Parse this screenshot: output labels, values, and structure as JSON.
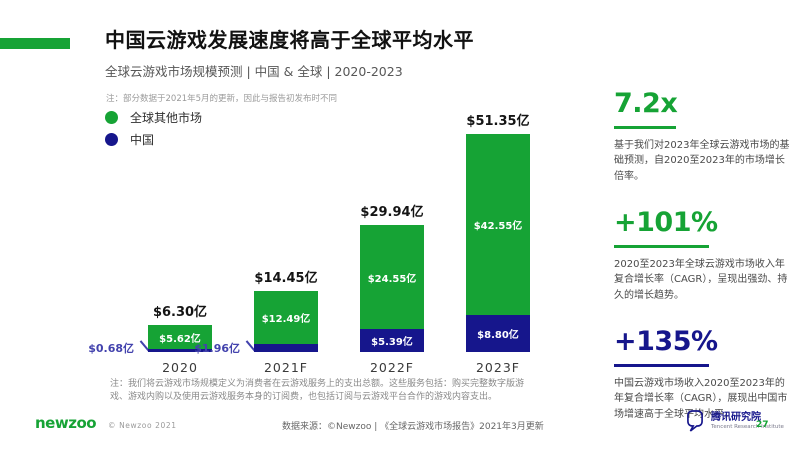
{
  "accent": {
    "green": "#16a335",
    "navy": "#16168c",
    "china_callout_blue": "#4242ad"
  },
  "header": {
    "title": "中国云游戏发展速度将高于全球平均水平",
    "subtitle": "全球云游戏市场规模预测 | 中国 & 全球 | 2020-2023"
  },
  "note_top": "注：部分数据于2021年5月的更新，因此与报告初发布时不同",
  "legend": [
    {
      "label": "全球其他市场",
      "color": "#16a335"
    },
    {
      "label": "中国",
      "color": "#16168c"
    }
  ],
  "chart_data": {
    "type": "bar",
    "stacked": true,
    "unit": "US$ 亿",
    "categories": [
      "2020",
      "2021F",
      "2022F",
      "2023F"
    ],
    "series": [
      {
        "name": "全球其他市场",
        "color": "#16a335",
        "values": [
          5.62,
          12.49,
          24.55,
          42.55
        ],
        "labels": [
          "$5.62亿",
          "$12.49亿",
          "$24.55亿",
          "$42.55亿"
        ]
      },
      {
        "name": "中国",
        "color": "#16168c",
        "values": [
          0.68,
          1.96,
          5.39,
          8.8
        ],
        "labels": [
          "$0.68亿",
          "$1.96亿",
          "$5.39亿",
          "$8.80亿"
        ]
      }
    ],
    "totals": [
      6.3,
      14.45,
      29.94,
      51.35
    ],
    "total_labels": [
      "$6.30亿",
      "$14.45亿",
      "$29.94亿",
      "$51.35亿"
    ],
    "ylim": [
      0,
      52
    ],
    "grid": false,
    "legend_position": "top-left"
  },
  "note_bottom": "注：我们将云游戏市场规模定义为消费者在云游戏服务上的支出总额。这些服务包括：购买完整数字版游戏、游戏内购以及使用云游戏服务本身的订阅费，也包括订阅与云游戏平台合作的游戏内容支出。",
  "stats": [
    {
      "value": "7.2x",
      "color": "#16a335",
      "desc": "基于我们对2023年全球云游戏市场的基础预测，自2020至2023年的市场增长倍率。"
    },
    {
      "value": "+101%",
      "color": "#16a335",
      "desc": "2020至2023年全球云游戏市场收入年复合增长率（CAGR），呈现出强劲、持久的增长趋势。"
    },
    {
      "value": "+135%",
      "color": "#16168c",
      "desc": "中国云游戏市场收入2020至2023年的年复合增长率（CAGR），展现出中国市场增速高于全球平均水平。"
    }
  ],
  "footer": {
    "logo": "newzoo",
    "copyright": "© Newzoo 2021",
    "source": "数据来源：©Newzoo | 《全球云游戏市场报告》2021年3月更新",
    "org_cn": "腾讯研究院",
    "org_en": "Tencent Research Institute",
    "page": "27"
  }
}
